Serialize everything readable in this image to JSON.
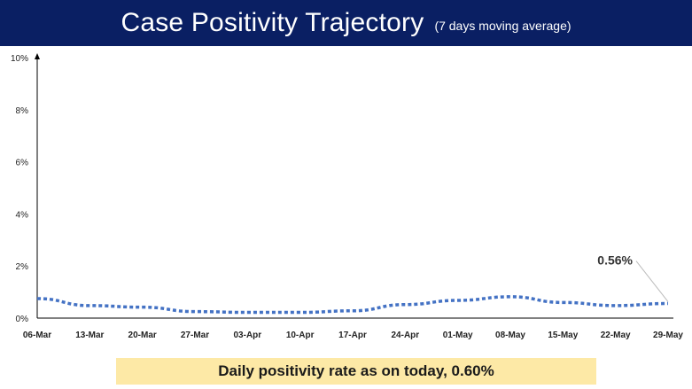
{
  "header": {
    "title": "Case Positivity Trajectory",
    "subtitle": "(7 days moving average)"
  },
  "footer": {
    "text": "Daily positivity rate as on today, 0.60%"
  },
  "colors": {
    "header_bg": "#0a1f63",
    "line": "#4472c4",
    "footer_bg": "#fde9a6"
  },
  "chart_data": {
    "type": "line",
    "line_style": "dotted",
    "ylim": [
      0,
      10
    ],
    "yticks": [
      0,
      2,
      4,
      6,
      8,
      10
    ],
    "ytick_labels": [
      "0%",
      "2%",
      "4%",
      "6%",
      "8%",
      "10%"
    ],
    "xtick_labels": [
      "06-Mar",
      "13-Mar",
      "20-Mar",
      "27-Mar",
      "03-Apr",
      "10-Apr",
      "17-Apr",
      "24-Apr",
      "01-May",
      "08-May",
      "15-May",
      "22-May",
      "29-May"
    ],
    "x": [
      "06-Mar",
      "13-Mar",
      "20-Mar",
      "27-Mar",
      "03-Apr",
      "10-Apr",
      "17-Apr",
      "24-Apr",
      "01-May",
      "08-May",
      "15-May",
      "22-May",
      "29-May"
    ],
    "series": [
      {
        "values": [
          0.75,
          0.48,
          0.42,
          0.25,
          0.22,
          0.22,
          0.28,
          0.52,
          0.68,
          0.82,
          0.6,
          0.48,
          0.56
        ]
      }
    ],
    "annotation": {
      "text": "0.56%",
      "x": "29-May",
      "y": 0.56
    },
    "grid": false
  }
}
